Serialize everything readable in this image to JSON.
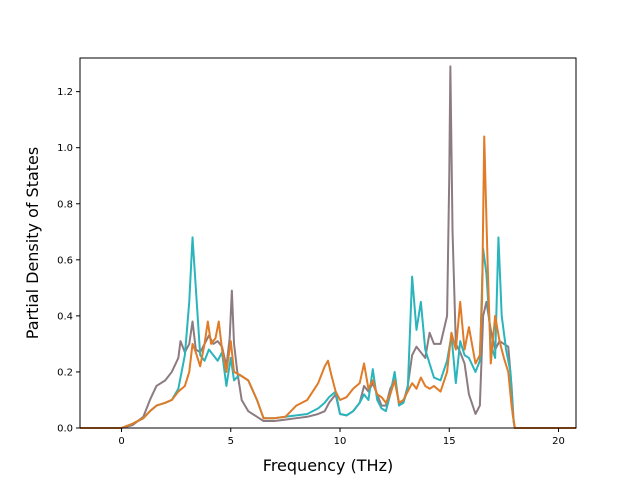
{
  "chart_data": {
    "type": "line",
    "title": "",
    "xlabel": "Frequency (THz)",
    "ylabel": "Partial Density of States",
    "xlim": [
      -1.9,
      20.8
    ],
    "ylim": [
      0.0,
      1.32
    ],
    "xticks": [
      0,
      5,
      10,
      15,
      20
    ],
    "yticks": [
      0.0,
      0.2,
      0.4,
      0.6,
      0.8,
      1.0,
      1.2
    ],
    "xtick_labels": [
      "0",
      "5",
      "10",
      "15",
      "20"
    ],
    "ytick_labels": [
      "0.0",
      "0.2",
      "0.4",
      "0.6",
      "0.8",
      "1.0",
      "1.2"
    ],
    "grid": false,
    "legend": "none",
    "series": [
      {
        "color": "#8c7b80",
        "points": [
          [
            -1.9,
            0
          ],
          [
            0,
            0
          ],
          [
            0.5,
            0.01
          ],
          [
            1.0,
            0.04
          ],
          [
            1.3,
            0.1
          ],
          [
            1.6,
            0.15
          ],
          [
            2.0,
            0.17
          ],
          [
            2.3,
            0.2
          ],
          [
            2.6,
            0.25
          ],
          [
            2.7,
            0.31
          ],
          [
            2.9,
            0.27
          ],
          [
            3.1,
            0.3
          ],
          [
            3.25,
            0.38
          ],
          [
            3.4,
            0.28
          ],
          [
            3.6,
            0.27
          ],
          [
            3.8,
            0.3
          ],
          [
            4.0,
            0.33
          ],
          [
            4.2,
            0.3
          ],
          [
            4.4,
            0.31
          ],
          [
            4.6,
            0.29
          ],
          [
            4.8,
            0.22
          ],
          [
            4.95,
            0.32
          ],
          [
            5.05,
            0.49
          ],
          [
            5.15,
            0.3
          ],
          [
            5.3,
            0.2
          ],
          [
            5.5,
            0.1
          ],
          [
            5.8,
            0.06
          ],
          [
            6.2,
            0.04
          ],
          [
            6.5,
            0.025
          ],
          [
            7.0,
            0.025
          ],
          [
            7.5,
            0.03
          ],
          [
            8.0,
            0.035
          ],
          [
            8.5,
            0.04
          ],
          [
            9.0,
            0.05
          ],
          [
            9.3,
            0.06
          ],
          [
            9.5,
            0.09
          ],
          [
            9.8,
            0.12
          ],
          [
            10.0,
            0.05
          ],
          [
            10.3,
            0.045
          ],
          [
            10.6,
            0.06
          ],
          [
            10.9,
            0.09
          ],
          [
            11.1,
            0.15
          ],
          [
            11.3,
            0.13
          ],
          [
            11.5,
            0.16
          ],
          [
            11.7,
            0.12
          ],
          [
            11.9,
            0.08
          ],
          [
            12.1,
            0.08
          ],
          [
            12.3,
            0.14
          ],
          [
            12.5,
            0.17
          ],
          [
            12.7,
            0.09
          ],
          [
            12.9,
            0.09
          ],
          [
            13.1,
            0.15
          ],
          [
            13.3,
            0.26
          ],
          [
            13.5,
            0.29
          ],
          [
            13.7,
            0.27
          ],
          [
            13.9,
            0.25
          ],
          [
            14.1,
            0.34
          ],
          [
            14.3,
            0.3
          ],
          [
            14.6,
            0.3
          ],
          [
            14.9,
            0.4
          ],
          [
            15.0,
            0.9
          ],
          [
            15.05,
            1.29
          ],
          [
            15.15,
            0.7
          ],
          [
            15.3,
            0.3
          ],
          [
            15.5,
            0.27
          ],
          [
            15.7,
            0.23
          ],
          [
            15.9,
            0.12
          ],
          [
            16.2,
            0.05
          ],
          [
            16.4,
            0.08
          ],
          [
            16.55,
            0.4
          ],
          [
            16.7,
            0.45
          ],
          [
            16.9,
            0.35
          ],
          [
            17.1,
            0.28
          ],
          [
            17.3,
            0.31
          ],
          [
            17.5,
            0.3
          ],
          [
            17.7,
            0.29
          ],
          [
            17.85,
            0.15
          ],
          [
            17.95,
            0.02
          ],
          [
            18.0,
            0
          ],
          [
            20.8,
            0
          ]
        ]
      },
      {
        "color": "#2ab5bc",
        "points": [
          [
            -1.9,
            0
          ],
          [
            0,
            0
          ],
          [
            0.5,
            0.015
          ],
          [
            1.0,
            0.035
          ],
          [
            1.3,
            0.06
          ],
          [
            1.6,
            0.08
          ],
          [
            2.0,
            0.09
          ],
          [
            2.3,
            0.1
          ],
          [
            2.6,
            0.14
          ],
          [
            2.9,
            0.26
          ],
          [
            3.1,
            0.45
          ],
          [
            3.25,
            0.68
          ],
          [
            3.4,
            0.5
          ],
          [
            3.6,
            0.26
          ],
          [
            3.8,
            0.24
          ],
          [
            4.0,
            0.28
          ],
          [
            4.2,
            0.26
          ],
          [
            4.4,
            0.24
          ],
          [
            4.6,
            0.27
          ],
          [
            4.8,
            0.15
          ],
          [
            5.0,
            0.25
          ],
          [
            5.15,
            0.17
          ],
          [
            5.4,
            0.19
          ],
          [
            5.8,
            0.17
          ],
          [
            6.2,
            0.1
          ],
          [
            6.5,
            0.035
          ],
          [
            7.0,
            0.035
          ],
          [
            7.5,
            0.04
          ],
          [
            8.0,
            0.045
          ],
          [
            8.5,
            0.05
          ],
          [
            9.0,
            0.07
          ],
          [
            9.3,
            0.09
          ],
          [
            9.5,
            0.11
          ],
          [
            9.8,
            0.13
          ],
          [
            10.0,
            0.05
          ],
          [
            10.3,
            0.045
          ],
          [
            10.6,
            0.06
          ],
          [
            10.9,
            0.09
          ],
          [
            11.1,
            0.12
          ],
          [
            11.3,
            0.1
          ],
          [
            11.5,
            0.21
          ],
          [
            11.7,
            0.1
          ],
          [
            11.9,
            0.07
          ],
          [
            12.1,
            0.06
          ],
          [
            12.3,
            0.12
          ],
          [
            12.5,
            0.2
          ],
          [
            12.7,
            0.08
          ],
          [
            12.9,
            0.09
          ],
          [
            13.1,
            0.14
          ],
          [
            13.3,
            0.54
          ],
          [
            13.5,
            0.35
          ],
          [
            13.7,
            0.45
          ],
          [
            13.9,
            0.28
          ],
          [
            14.1,
            0.23
          ],
          [
            14.3,
            0.18
          ],
          [
            14.6,
            0.17
          ],
          [
            14.9,
            0.24
          ],
          [
            15.1,
            0.33
          ],
          [
            15.3,
            0.16
          ],
          [
            15.5,
            0.31
          ],
          [
            15.7,
            0.26
          ],
          [
            15.9,
            0.25
          ],
          [
            16.2,
            0.2
          ],
          [
            16.4,
            0.24
          ],
          [
            16.55,
            0.64
          ],
          [
            16.7,
            0.55
          ],
          [
            16.9,
            0.3
          ],
          [
            17.1,
            0.25
          ],
          [
            17.25,
            0.68
          ],
          [
            17.4,
            0.4
          ],
          [
            17.6,
            0.28
          ],
          [
            17.8,
            0.2
          ],
          [
            17.9,
            0.05
          ],
          [
            18.0,
            0
          ],
          [
            20.8,
            0
          ]
        ]
      },
      {
        "color": "#e07b28",
        "points": [
          [
            -1.9,
            0
          ],
          [
            0,
            0
          ],
          [
            0.5,
            0.015
          ],
          [
            1.0,
            0.035
          ],
          [
            1.3,
            0.06
          ],
          [
            1.6,
            0.08
          ],
          [
            2.0,
            0.09
          ],
          [
            2.3,
            0.1
          ],
          [
            2.6,
            0.13
          ],
          [
            2.9,
            0.15
          ],
          [
            3.1,
            0.2
          ],
          [
            3.25,
            0.3
          ],
          [
            3.4,
            0.27
          ],
          [
            3.6,
            0.22
          ],
          [
            3.8,
            0.3
          ],
          [
            3.95,
            0.38
          ],
          [
            4.1,
            0.3
          ],
          [
            4.3,
            0.32
          ],
          [
            4.45,
            0.38
          ],
          [
            4.6,
            0.28
          ],
          [
            4.8,
            0.2
          ],
          [
            5.0,
            0.31
          ],
          [
            5.15,
            0.2
          ],
          [
            5.4,
            0.19
          ],
          [
            5.8,
            0.17
          ],
          [
            6.2,
            0.1
          ],
          [
            6.5,
            0.035
          ],
          [
            7.0,
            0.035
          ],
          [
            7.5,
            0.04
          ],
          [
            8.0,
            0.08
          ],
          [
            8.5,
            0.1
          ],
          [
            9.0,
            0.16
          ],
          [
            9.3,
            0.22
          ],
          [
            9.45,
            0.24
          ],
          [
            9.6,
            0.19
          ],
          [
            9.8,
            0.13
          ],
          [
            10.0,
            0.1
          ],
          [
            10.3,
            0.11
          ],
          [
            10.6,
            0.14
          ],
          [
            10.9,
            0.16
          ],
          [
            11.1,
            0.23
          ],
          [
            11.3,
            0.14
          ],
          [
            11.5,
            0.17
          ],
          [
            11.7,
            0.12
          ],
          [
            11.9,
            0.11
          ],
          [
            12.1,
            0.09
          ],
          [
            12.3,
            0.12
          ],
          [
            12.5,
            0.17
          ],
          [
            12.7,
            0.09
          ],
          [
            12.9,
            0.1
          ],
          [
            13.1,
            0.13
          ],
          [
            13.3,
            0.16
          ],
          [
            13.5,
            0.14
          ],
          [
            13.7,
            0.18
          ],
          [
            13.9,
            0.15
          ],
          [
            14.1,
            0.14
          ],
          [
            14.3,
            0.15
          ],
          [
            14.6,
            0.13
          ],
          [
            14.9,
            0.2
          ],
          [
            15.1,
            0.34
          ],
          [
            15.3,
            0.28
          ],
          [
            15.5,
            0.45
          ],
          [
            15.7,
            0.28
          ],
          [
            15.9,
            0.36
          ],
          [
            16.2,
            0.23
          ],
          [
            16.4,
            0.26
          ],
          [
            16.5,
            0.45
          ],
          [
            16.6,
            1.04
          ],
          [
            16.75,
            0.6
          ],
          [
            16.9,
            0.23
          ],
          [
            17.1,
            0.4
          ],
          [
            17.3,
            0.31
          ],
          [
            17.5,
            0.25
          ],
          [
            17.7,
            0.2
          ],
          [
            17.85,
            0.08
          ],
          [
            18.0,
            0
          ],
          [
            20.8,
            0
          ]
        ]
      }
    ]
  }
}
